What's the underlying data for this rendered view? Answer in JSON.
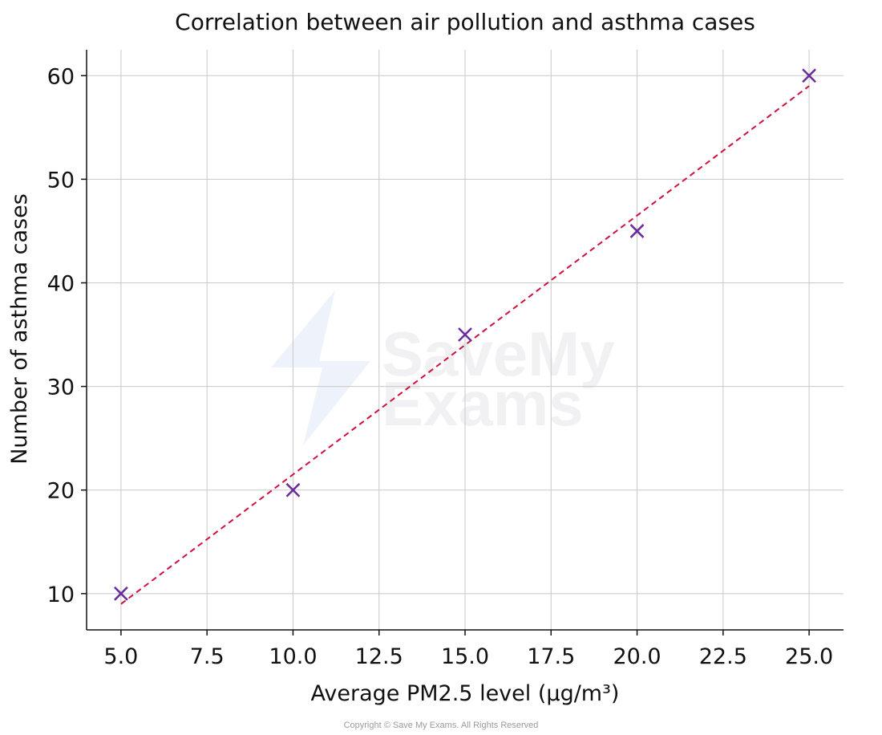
{
  "chart_data": {
    "type": "scatter",
    "title": "Correlation between air pollution and asthma cases",
    "xlabel": "Average PM2.5 level (μg/m³)",
    "ylabel": "Number of asthma cases",
    "x": [
      5,
      10,
      15,
      20,
      25
    ],
    "y": [
      10,
      20,
      35,
      45,
      60
    ],
    "xlim": [
      4,
      26
    ],
    "ylim": [
      6.5,
      62.5
    ],
    "xticks": [
      5.0,
      7.5,
      10.0,
      12.5,
      15.0,
      17.5,
      20.0,
      22.5,
      25.0
    ],
    "xtick_labels": [
      "5.0",
      "7.5",
      "10.0",
      "12.5",
      "15.0",
      "17.5",
      "20.0",
      "22.5",
      "25.0"
    ],
    "yticks": [
      10,
      20,
      30,
      40,
      50,
      60
    ],
    "ytick_labels": [
      "10",
      "20",
      "30",
      "40",
      "50",
      "60"
    ],
    "grid": true,
    "marker": "x",
    "marker_color": "#6a2c9c",
    "trendline": {
      "style": "dashed",
      "color": "#d0103a",
      "from": [
        5,
        9
      ],
      "to": [
        25,
        59
      ]
    }
  },
  "watermark": {
    "line1": "SaveMy",
    "line2": "Exams"
  },
  "copyright": "Copyright © Save My Exams. All Rights Reserved"
}
